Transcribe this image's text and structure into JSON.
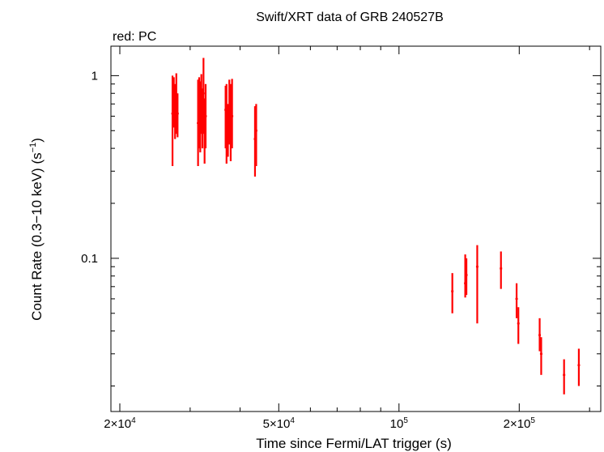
{
  "chart_data": {
    "type": "scatter",
    "title": "Swift/XRT data of GRB 240527B",
    "subtitle": "red: PC",
    "xlabel": "Time since Fermi/LAT trigger (s)",
    "ylabel_main": "Count Rate (0.3−10 keV) (s",
    "ylabel_sup": "−1",
    "ylabel_end": ")",
    "x_scale": "log",
    "y_scale": "log",
    "xlim": [
      19000,
      320000
    ],
    "ylim": [
      0.0145,
      1.45
    ],
    "x_ticks": [
      {
        "value": 20000,
        "mant": "2×10",
        "exp": "4"
      },
      {
        "value": 50000,
        "mant": "5×10",
        "exp": "4"
      },
      {
        "value": 100000,
        "mant": "10",
        "exp": "5"
      },
      {
        "value": 200000,
        "mant": "2×10",
        "exp": "5"
      }
    ],
    "x_minor_ticks": [
      30000,
      40000,
      60000,
      70000,
      80000,
      90000,
      300000
    ],
    "y_ticks": [
      {
        "value": 1,
        "label": "1"
      },
      {
        "value": 0.1,
        "label": "0.1"
      }
    ],
    "y_minor_ticks": [
      0.02,
      0.03,
      0.04,
      0.05,
      0.06,
      0.07,
      0.08,
      0.09,
      0.2,
      0.3,
      0.4,
      0.5,
      0.6,
      0.7,
      0.8,
      0.9
    ],
    "grid": false,
    "color": "#ff0000",
    "series": [
      {
        "name": "PC",
        "points": [
          {
            "x": 27100,
            "y": 0.62,
            "ylo": 0.32,
            "yhi": 1.0
          },
          {
            "x": 27300,
            "y": 0.75,
            "ylo": 0.52,
            "yhi": 0.98
          },
          {
            "x": 27500,
            "y": 0.6,
            "ylo": 0.45,
            "yhi": 0.9
          },
          {
            "x": 27700,
            "y": 0.7,
            "ylo": 0.48,
            "yhi": 1.03
          },
          {
            "x": 27900,
            "y": 0.62,
            "ylo": 0.46,
            "yhi": 0.8
          },
          {
            "x": 31400,
            "y": 0.55,
            "ylo": 0.32,
            "yhi": 0.95
          },
          {
            "x": 31600,
            "y": 0.7,
            "ylo": 0.4,
            "yhi": 0.98
          },
          {
            "x": 31800,
            "y": 0.6,
            "ylo": 0.38,
            "yhi": 0.93
          },
          {
            "x": 32000,
            "y": 0.75,
            "ylo": 0.48,
            "yhi": 1.02
          },
          {
            "x": 32200,
            "y": 0.55,
            "ylo": 0.4,
            "yhi": 0.85
          },
          {
            "x": 32400,
            "y": 0.8,
            "ylo": 0.48,
            "yhi": 1.25
          },
          {
            "x": 32600,
            "y": 0.5,
            "ylo": 0.33,
            "yhi": 0.75
          },
          {
            "x": 32800,
            "y": 0.6,
            "ylo": 0.4,
            "yhi": 0.9
          },
          {
            "x": 36800,
            "y": 0.65,
            "ylo": 0.4,
            "yhi": 0.88
          },
          {
            "x": 37000,
            "y": 0.55,
            "ylo": 0.33,
            "yhi": 0.9
          },
          {
            "x": 37300,
            "y": 0.5,
            "ylo": 0.36,
            "yhi": 0.7
          },
          {
            "x": 37600,
            "y": 0.65,
            "ylo": 0.42,
            "yhi": 0.95
          },
          {
            "x": 37900,
            "y": 0.55,
            "ylo": 0.34,
            "yhi": 0.9
          },
          {
            "x": 38200,
            "y": 0.6,
            "ylo": 0.4,
            "yhi": 0.96
          },
          {
            "x": 43600,
            "y": 0.45,
            "ylo": 0.28,
            "yhi": 0.68
          },
          {
            "x": 43900,
            "y": 0.5,
            "ylo": 0.32,
            "yhi": 0.7
          },
          {
            "x": 136000,
            "y": 0.066,
            "ylo": 0.05,
            "yhi": 0.083
          },
          {
            "x": 146500,
            "y": 0.073,
            "ylo": 0.061,
            "yhi": 0.105
          },
          {
            "x": 147500,
            "y": 0.081,
            "ylo": 0.063,
            "yhi": 0.1
          },
          {
            "x": 157000,
            "y": 0.09,
            "ylo": 0.044,
            "yhi": 0.118
          },
          {
            "x": 180000,
            "y": 0.088,
            "ylo": 0.068,
            "yhi": 0.109
          },
          {
            "x": 197000,
            "y": 0.06,
            "ylo": 0.047,
            "yhi": 0.073
          },
          {
            "x": 199000,
            "y": 0.044,
            "ylo": 0.034,
            "yhi": 0.054
          },
          {
            "x": 225000,
            "y": 0.038,
            "ylo": 0.031,
            "yhi": 0.047
          },
          {
            "x": 227000,
            "y": 0.03,
            "ylo": 0.023,
            "yhi": 0.037
          },
          {
            "x": 259000,
            "y": 0.023,
            "ylo": 0.018,
            "yhi": 0.028
          },
          {
            "x": 282000,
            "y": 0.026,
            "ylo": 0.02,
            "yhi": 0.032
          }
        ]
      }
    ]
  }
}
